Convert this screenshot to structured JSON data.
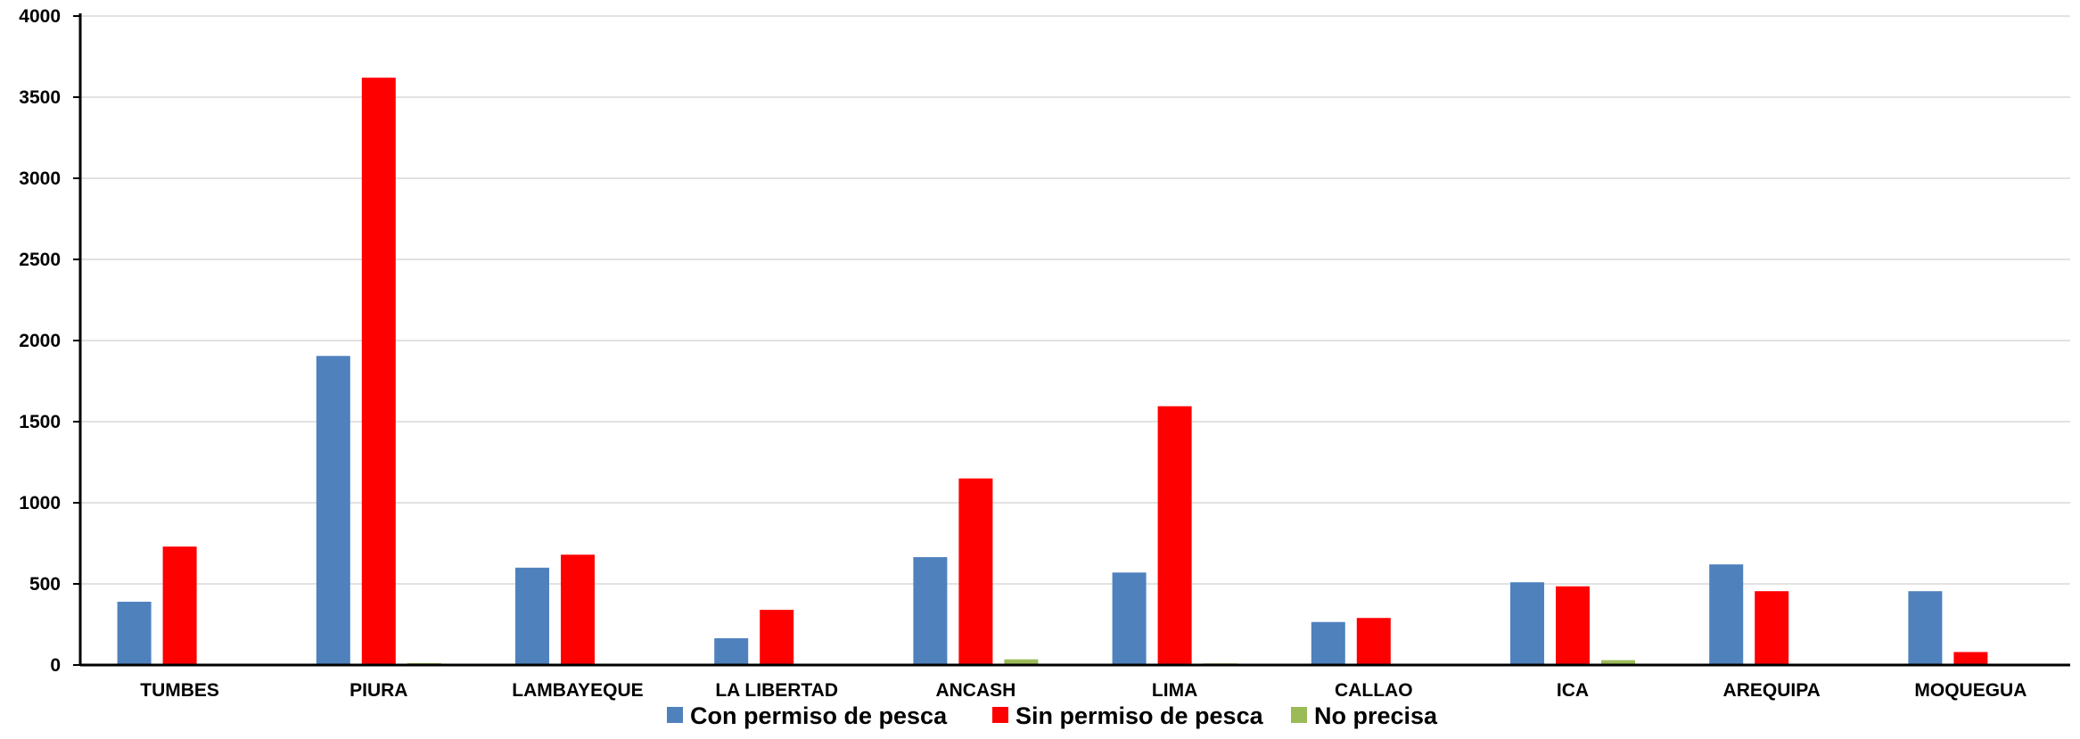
{
  "chart_data": {
    "type": "bar",
    "categories": [
      "TUMBES",
      "PIURA",
      "LAMBAYEQUE",
      "LA LIBERTAD",
      "ANCASH",
      "LIMA",
      "CALLAO",
      "ICA",
      "AREQUIPA",
      "MOQUEGUA"
    ],
    "series": [
      {
        "name": "Con permiso de pesca",
        "color": "#4F81BD",
        "values": [
          390,
          1905,
          600,
          165,
          665,
          570,
          265,
          510,
          620,
          455
        ]
      },
      {
        "name": "Sin permiso de pesca",
        "color": "#FF0000",
        "values": [
          730,
          3620,
          680,
          340,
          1150,
          1595,
          290,
          485,
          455,
          80
        ]
      },
      {
        "name": "No precisa",
        "color": "#9BBB59",
        "values": [
          5,
          12,
          3,
          2,
          35,
          10,
          2,
          30,
          5,
          2
        ]
      }
    ],
    "y_ticks": [
      "0",
      "500",
      "1000",
      "1500",
      "2000",
      "2500",
      "3000",
      "3500",
      "4000"
    ],
    "ylim": [
      0,
      4000
    ],
    "grid": true,
    "legend_position": "bottom",
    "title": "",
    "xlabel": "",
    "ylabel": ""
  }
}
